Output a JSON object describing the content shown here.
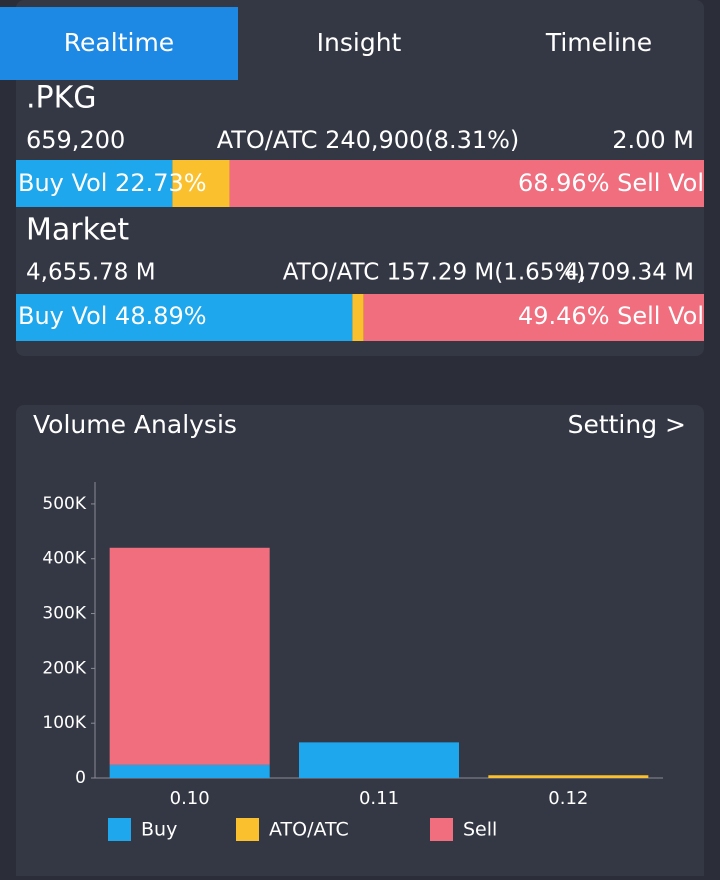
{
  "tabs": [
    "Realtime",
    "Insight",
    "Timeline"
  ],
  "stock": {
    "name": ".PKG",
    "buy_total": "659,200",
    "ato_atc": "ATO/ATC 240,900(8.31%)",
    "sell_total": "2.00 M",
    "buy_label": "Buy Vol 22.73%",
    "sell_label": "68.96% Sell Vol",
    "split": [
      22.73,
      8.31,
      68.96
    ]
  },
  "market": {
    "name": "Market",
    "buy_total": "4,655.78 M",
    "ato_atc": "ATO/ATC 157.29 M(1.65%)",
    "sell_total": "4,709.34 M",
    "buy_label": "Buy Vol 48.89%",
    "sell_label": "49.46% Sell Vol",
    "split": [
      48.89,
      1.65,
      49.46
    ]
  },
  "split_colors": [
    "#1ea7ec",
    "#fbc02d",
    "#f06e7e"
  ],
  "panel": {
    "title": "Volume Analysis",
    "setting": "Setting >"
  },
  "chart_data": {
    "type": "stacked_bar",
    "categories": [
      "0.10",
      "0.11",
      "0.12"
    ],
    "series": [
      {
        "name": "Buy",
        "color": "#1ea7ec",
        "values": [
          24000,
          65000,
          0
        ]
      },
      {
        "name": "ATO/ATC",
        "color": "#fbc02d",
        "values": [
          0,
          0,
          5000
        ]
      },
      {
        "name": "Sell",
        "color": "#f06e7e",
        "values": [
          396000,
          0,
          0
        ]
      }
    ],
    "ylim": [
      0,
      540000
    ],
    "yticks": [
      0,
      {
        "value": 100000,
        "label": "100K"
      },
      {
        "value": 200000,
        "label": "200K"
      },
      {
        "value": 300000,
        "label": "300K"
      },
      {
        "value": 400000,
        "label": "400K"
      },
      {
        "value": 500000,
        "label": "500K"
      }
    ]
  }
}
